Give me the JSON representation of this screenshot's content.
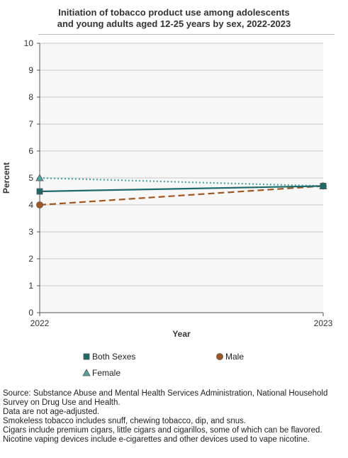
{
  "chart_data": {
    "type": "line",
    "title": "Initiation of tobacco product use among adolescents and young adults aged 12-25 years by sex, 2022-2023",
    "title_lines": [
      "Initiation of tobacco product use among adolescents",
      "and young adults aged 12-25 years by sex, 2022-2023"
    ],
    "xlabel": "Year",
    "ylabel": "Percent",
    "x": [
      "2022",
      "2023"
    ],
    "ylim": [
      0,
      10
    ],
    "yticks": [
      "0",
      "1",
      "2",
      "3",
      "4",
      "5",
      "6",
      "7",
      "8",
      "9",
      "10"
    ],
    "grid": true,
    "legend_position": "bottom",
    "series": [
      {
        "name": "Both Sexes",
        "values": [
          4.5,
          4.7
        ],
        "color": "#1d6a6a",
        "marker": "square",
        "line": "solid"
      },
      {
        "name": "Male",
        "values": [
          4.0,
          4.7
        ],
        "color": "#a0561e",
        "marker": "circle",
        "line": "dashed"
      },
      {
        "name": "Female",
        "values": [
          5.0,
          4.7
        ],
        "color": "#4fa5a5",
        "marker": "triangle",
        "line": "dotted"
      }
    ]
  },
  "footnotes": [
    "Source: Substance Abuse and Mental Health Services Administration, National Household Survey on Drug Use and Health.",
    "Data are not age-adjusted.",
    "Smokeless tobacco includes snuff, chewing tobacco, dip, and snus.",
    "Cigars include premium cigars, little cigars and cigarillos, some of which can be flavored.",
    "Nicotine vaping devices include e-cigarettes and other devices used to vape nicotine."
  ]
}
